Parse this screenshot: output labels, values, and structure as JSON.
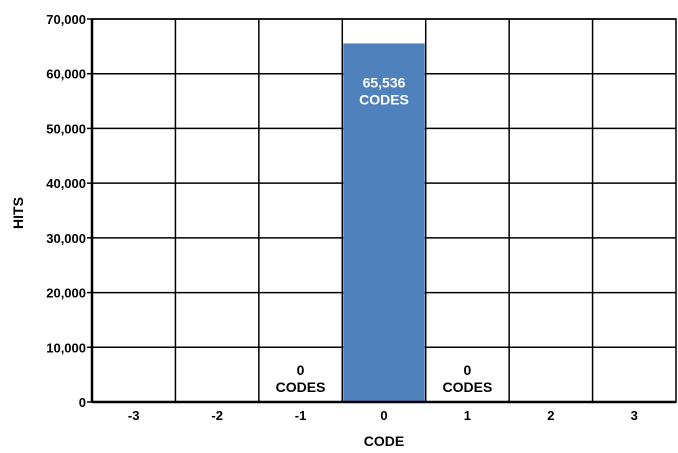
{
  "chart_data": {
    "type": "bar",
    "categories": [
      "-3",
      "-2",
      "-1",
      "0",
      "1",
      "2",
      "3"
    ],
    "values": [
      0,
      0,
      0,
      65536,
      0,
      0,
      0
    ],
    "title": "",
    "xlabel": "CODE",
    "ylabel": "HITS",
    "ylim": [
      0,
      70000
    ],
    "yticks": [
      "0",
      "10,000",
      "20,000",
      "30,000",
      "40,000",
      "50,000",
      "60,000",
      "70,000"
    ],
    "grid": true,
    "legend": "none",
    "bar_color": "#4f81bd",
    "annotations": [
      {
        "category": "-1",
        "lines": [
          "0",
          "CODES"
        ],
        "color": "#000000"
      },
      {
        "category": "0",
        "lines": [
          "65,536",
          "CODES"
        ],
        "color": "#ffffff"
      },
      {
        "category": "1",
        "lines": [
          "0",
          "CODES"
        ],
        "color": "#000000"
      }
    ]
  }
}
